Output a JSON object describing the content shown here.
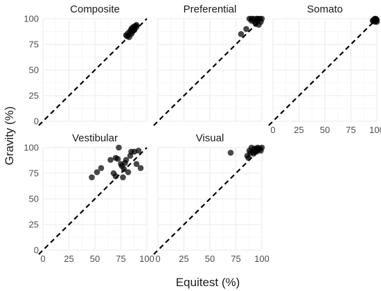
{
  "chart_data": {
    "type": "scatter",
    "xlabel": "Equitest (%)",
    "ylabel": "Gravity (%)",
    "xlim": [
      0,
      100
    ],
    "ylim": [
      0,
      100
    ],
    "x_ticks": [
      "0",
      "25",
      "50",
      "75",
      "100"
    ],
    "y_ticks": [
      "0",
      "25",
      "50",
      "75",
      "100"
    ],
    "grid": true,
    "reference_line": "identity (dashed)",
    "colors": {
      "points": "#000000",
      "grid": "#ebebeb",
      "reference": "#000000"
    },
    "panels": [
      {
        "title": "Composite",
        "show_x_ticks": false,
        "show_y_ticks": true,
        "points": [
          [
            80,
            84
          ],
          [
            81,
            83
          ],
          [
            83,
            82
          ],
          [
            82,
            86
          ],
          [
            84,
            88
          ],
          [
            85,
            90
          ],
          [
            86,
            91
          ],
          [
            87,
            92
          ],
          [
            88,
            90
          ],
          [
            89,
            93
          ],
          [
            90,
            92
          ],
          [
            86,
            87
          ],
          [
            88,
            89
          ],
          [
            90,
            94
          ],
          [
            85,
            85
          ],
          [
            87,
            89
          ]
        ]
      },
      {
        "title": "Preferential",
        "show_x_ticks": false,
        "show_y_ticks": false,
        "points": [
          [
            80,
            85
          ],
          [
            85,
            90
          ],
          [
            88,
            100
          ],
          [
            90,
            98
          ],
          [
            92,
            100
          ],
          [
            93,
            97
          ],
          [
            94,
            95
          ],
          [
            95,
            100
          ],
          [
            96,
            98
          ],
          [
            97,
            94
          ],
          [
            98,
            100
          ],
          [
            99,
            97
          ],
          [
            100,
            100
          ],
          [
            90,
            100
          ],
          [
            96,
            100
          ]
        ]
      },
      {
        "title": "Somato",
        "show_x_ticks": true,
        "show_y_ticks": false,
        "points": [
          [
            96,
            98
          ],
          [
            97,
            99
          ],
          [
            98,
            100
          ],
          [
            99,
            98
          ],
          [
            100,
            99
          ],
          [
            98,
            97
          ],
          [
            99,
            100
          ],
          [
            97,
            98
          ],
          [
            100,
            97
          ],
          [
            98,
            99
          ]
        ]
      },
      {
        "title": "Vestibular",
        "show_x_ticks": true,
        "show_y_ticks": true,
        "points": [
          [
            47,
            71
          ],
          [
            52,
            76
          ],
          [
            56,
            80
          ],
          [
            65,
            88
          ],
          [
            68,
            75
          ],
          [
            70,
            90
          ],
          [
            72,
            89
          ],
          [
            73,
            100
          ],
          [
            75,
            84
          ],
          [
            76,
            82
          ],
          [
            77,
            71
          ],
          [
            78,
            79
          ],
          [
            79,
            85
          ],
          [
            80,
            88
          ],
          [
            82,
            76
          ],
          [
            84,
            92
          ],
          [
            88,
            96
          ],
          [
            90,
            84
          ],
          [
            92,
            97
          ],
          [
            94,
            80
          ],
          [
            70,
            72
          ],
          [
            85,
            96
          ]
        ]
      },
      {
        "title": "Visual",
        "show_x_ticks": true,
        "show_y_ticks": false,
        "points": [
          [
            70,
            95
          ],
          [
            86,
            92
          ],
          [
            87,
            90
          ],
          [
            88,
            97
          ],
          [
            90,
            100
          ],
          [
            91,
            96
          ],
          [
            92,
            98
          ],
          [
            93,
            99
          ],
          [
            94,
            97
          ],
          [
            95,
            96
          ],
          [
            96,
            100
          ],
          [
            97,
            98
          ],
          [
            98,
            99
          ],
          [
            99,
            97
          ],
          [
            100,
            100
          ],
          [
            89,
            95
          ],
          [
            92,
            94
          ],
          [
            95,
            99
          ]
        ]
      }
    ]
  }
}
